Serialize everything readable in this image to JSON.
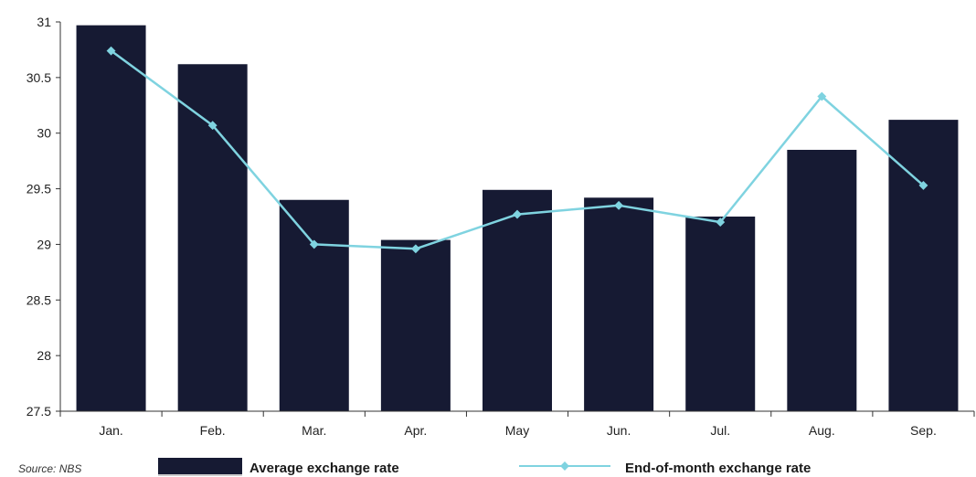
{
  "chart_data": {
    "type": "bar",
    "categories": [
      "Jan.",
      "Feb.",
      "Mar.",
      "Apr.",
      "May",
      "Jun.",
      "Jul.",
      "Aug.",
      "Sep."
    ],
    "ylim": [
      27.5,
      31
    ],
    "yticks": [
      "27.5",
      "28",
      "28.5",
      "29",
      "29.5",
      "30",
      "30.5",
      "31"
    ],
    "grid": false,
    "legend_placement": "bottom",
    "series": [
      {
        "name": "Average exchange rate",
        "type": "bar",
        "color": "#161a33",
        "values": [
          30.97,
          30.62,
          29.4,
          29.04,
          29.49,
          29.42,
          29.25,
          29.85,
          30.12
        ]
      },
      {
        "name": "End-of-month exchange rate",
        "type": "line",
        "color": "#7fd3e0",
        "values": [
          30.74,
          30.07,
          29.0,
          28.96,
          29.27,
          29.35,
          29.2,
          30.33,
          29.53
        ]
      }
    ],
    "source": "Source: NBS"
  }
}
